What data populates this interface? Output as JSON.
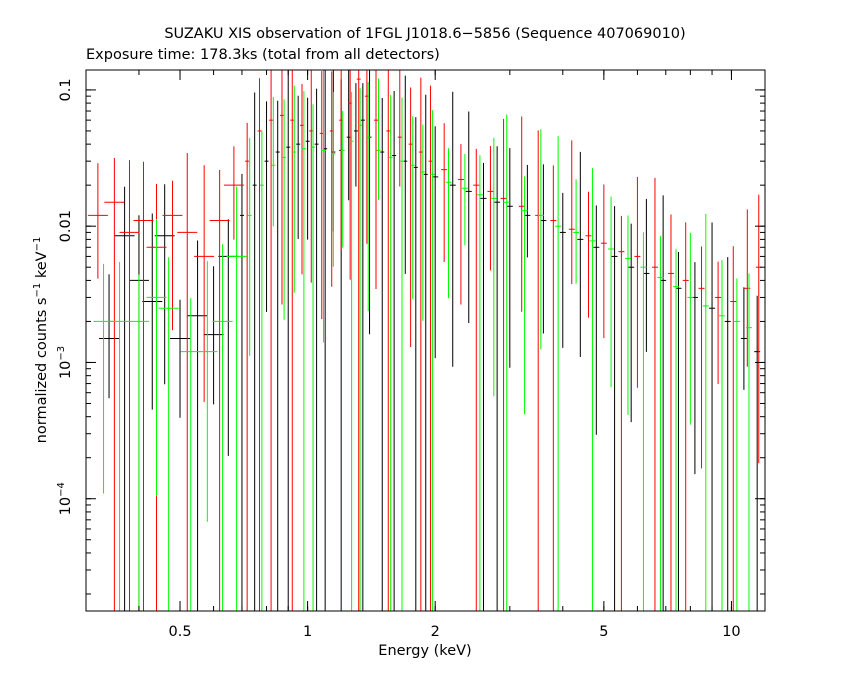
{
  "chart_data": {
    "type": "scatter",
    "title": "SUZAKU XIS observation of 1FGL J1018.6−5856 (Sequence 407069010)",
    "subtitle": "Exposure time: 178.3ks (total from all detectors)",
    "xlabel": "Energy (keV)",
    "ylabel_parts": {
      "a": "normalized counts s",
      "a_sup": "−1",
      "b": " keV",
      "b_sup": "−1"
    },
    "x_scale": "log",
    "y_scale": "log",
    "xlim": [
      0.3,
      12
    ],
    "ylim": [
      1.5e-05,
      0.14
    ],
    "x_ticks": [
      {
        "value": 0.5,
        "label": "0.5"
      },
      {
        "value": 1,
        "label": "1"
      },
      {
        "value": 2,
        "label": "2"
      },
      {
        "value": 5,
        "label": "5"
      },
      {
        "value": 10,
        "label": "10"
      }
    ],
    "y_ticks": [
      {
        "value": 0.1,
        "label": "0.1",
        "sup": ""
      },
      {
        "value": 0.01,
        "label": "0.01",
        "sup": ""
      },
      {
        "value": 0.001,
        "label": "10",
        "sup": "−3"
      },
      {
        "value": 0.0001,
        "label": "10",
        "sup": "−4"
      }
    ],
    "grid": false,
    "series": [
      {
        "color": "#000000",
        "points": [
          [
            0.34,
            0.0015
          ],
          [
            0.37,
            0.0085
          ],
          [
            0.4,
            0.004
          ],
          [
            0.43,
            0.0028
          ],
          [
            0.46,
            0.0085
          ],
          [
            0.5,
            0.0015
          ],
          [
            0.55,
            0.0022
          ],
          [
            0.6,
            0.0016
          ],
          [
            0.65,
            0.006
          ],
          [
            0.7,
            0.012
          ],
          [
            0.75,
            0.02
          ],
          [
            0.8,
            0.03
          ],
          [
            0.85,
            0.035
          ],
          [
            0.9,
            0.038
          ],
          [
            0.95,
            0.04
          ],
          [
            1.0,
            0.042
          ],
          [
            1.05,
            0.04
          ],
          [
            1.1,
            0.037
          ],
          [
            1.15,
            0.035
          ],
          [
            1.2,
            0.036
          ],
          [
            1.25,
            0.045
          ],
          [
            1.3,
            0.05
          ],
          [
            1.35,
            0.06
          ],
          [
            1.4,
            0.045
          ],
          [
            1.5,
            0.035
          ],
          [
            1.6,
            0.033
          ],
          [
            1.7,
            0.03
          ],
          [
            1.8,
            0.027
          ],
          [
            1.9,
            0.024
          ],
          [
            2.0,
            0.023
          ],
          [
            2.2,
            0.02
          ],
          [
            2.4,
            0.018
          ],
          [
            2.6,
            0.016
          ],
          [
            2.8,
            0.015
          ],
          [
            3.0,
            0.014
          ],
          [
            3.3,
            0.012
          ],
          [
            3.6,
            0.011
          ],
          [
            4.0,
            0.009
          ],
          [
            4.4,
            0.008
          ],
          [
            4.8,
            0.007
          ],
          [
            5.3,
            0.006
          ],
          [
            5.8,
            0.005
          ],
          [
            6.3,
            0.0045
          ],
          [
            6.9,
            0.004
          ],
          [
            7.5,
            0.0035
          ],
          [
            8.2,
            0.003
          ],
          [
            9.0,
            0.0025
          ],
          [
            9.8,
            0.002
          ],
          [
            10.7,
            0.0015
          ],
          [
            11.5,
            0.0012
          ]
        ]
      },
      {
        "color": "#ff0000",
        "points": [
          [
            0.32,
            0.012
          ],
          [
            0.35,
            0.015
          ],
          [
            0.38,
            0.009
          ],
          [
            0.41,
            0.011
          ],
          [
            0.44,
            0.007
          ],
          [
            0.48,
            0.012
          ],
          [
            0.52,
            0.009
          ],
          [
            0.57,
            0.006
          ],
          [
            0.62,
            0.011
          ],
          [
            0.67,
            0.02
          ],
          [
            0.72,
            0.03
          ],
          [
            0.77,
            0.05
          ],
          [
            0.82,
            0.06
          ],
          [
            0.87,
            0.065
          ],
          [
            0.92,
            0.06
          ],
          [
            0.97,
            0.055
          ],
          [
            1.02,
            0.05
          ],
          [
            1.08,
            0.048
          ],
          [
            1.14,
            0.05
          ],
          [
            1.2,
            0.06
          ],
          [
            1.26,
            0.08
          ],
          [
            1.32,
            0.12
          ],
          [
            1.38,
            0.09
          ],
          [
            1.45,
            0.06
          ],
          [
            1.55,
            0.05
          ],
          [
            1.65,
            0.045
          ],
          [
            1.75,
            0.04
          ],
          [
            1.85,
            0.035
          ],
          [
            1.95,
            0.03
          ],
          [
            2.1,
            0.026
          ],
          [
            2.3,
            0.022
          ],
          [
            2.5,
            0.02
          ],
          [
            2.7,
            0.018
          ],
          [
            2.9,
            0.016
          ],
          [
            3.2,
            0.014
          ],
          [
            3.5,
            0.012
          ],
          [
            3.8,
            0.011
          ],
          [
            4.2,
            0.0095
          ],
          [
            4.6,
            0.0085
          ],
          [
            5.0,
            0.0075
          ],
          [
            5.5,
            0.0065
          ],
          [
            6.0,
            0.006
          ],
          [
            6.6,
            0.005
          ],
          [
            7.2,
            0.0045
          ],
          [
            7.8,
            0.004
          ],
          [
            8.5,
            0.0035
          ],
          [
            9.3,
            0.003
          ],
          [
            10.1,
            0.0028
          ],
          [
            10.9,
            0.0035
          ],
          [
            11.6,
            0.005
          ]
        ]
      },
      {
        "color": "#00ff00",
        "points": [
          [
            0.33,
            0.002
          ],
          [
            0.36,
            0.002
          ],
          [
            0.4,
            0.002
          ],
          [
            0.44,
            0.003
          ],
          [
            0.47,
            0.0025
          ],
          [
            0.53,
            0.0012
          ],
          [
            0.58,
            0.0012
          ],
          [
            0.63,
            0.002
          ],
          [
            0.68,
            0.006
          ],
          [
            0.73,
            0.012
          ],
          [
            0.78,
            0.02
          ],
          [
            0.83,
            0.028
          ],
          [
            0.88,
            0.032
          ],
          [
            0.93,
            0.035
          ],
          [
            0.98,
            0.037
          ],
          [
            1.03,
            0.038
          ],
          [
            1.09,
            0.036
          ],
          [
            1.15,
            0.034
          ],
          [
            1.21,
            0.036
          ],
          [
            1.27,
            0.042
          ],
          [
            1.33,
            0.055
          ],
          [
            1.39,
            0.045
          ],
          [
            1.47,
            0.036
          ],
          [
            1.57,
            0.032
          ],
          [
            1.67,
            0.03
          ],
          [
            1.77,
            0.028
          ],
          [
            1.87,
            0.025
          ],
          [
            1.97,
            0.024
          ],
          [
            2.15,
            0.021
          ],
          [
            2.35,
            0.019
          ],
          [
            2.55,
            0.017
          ],
          [
            2.75,
            0.016
          ],
          [
            2.95,
            0.015
          ],
          [
            3.25,
            0.013
          ],
          [
            3.55,
            0.012
          ],
          [
            3.9,
            0.01
          ],
          [
            4.3,
            0.009
          ],
          [
            4.7,
            0.0078
          ],
          [
            5.2,
            0.0068
          ],
          [
            5.7,
            0.0058
          ],
          [
            6.2,
            0.005
          ],
          [
            6.8,
            0.0042
          ],
          [
            7.4,
            0.0036
          ],
          [
            8.0,
            0.003
          ],
          [
            8.7,
            0.0026
          ],
          [
            9.5,
            0.0022
          ],
          [
            10.3,
            0.002
          ],
          [
            11.0,
            0.0018
          ]
        ]
      }
    ]
  }
}
